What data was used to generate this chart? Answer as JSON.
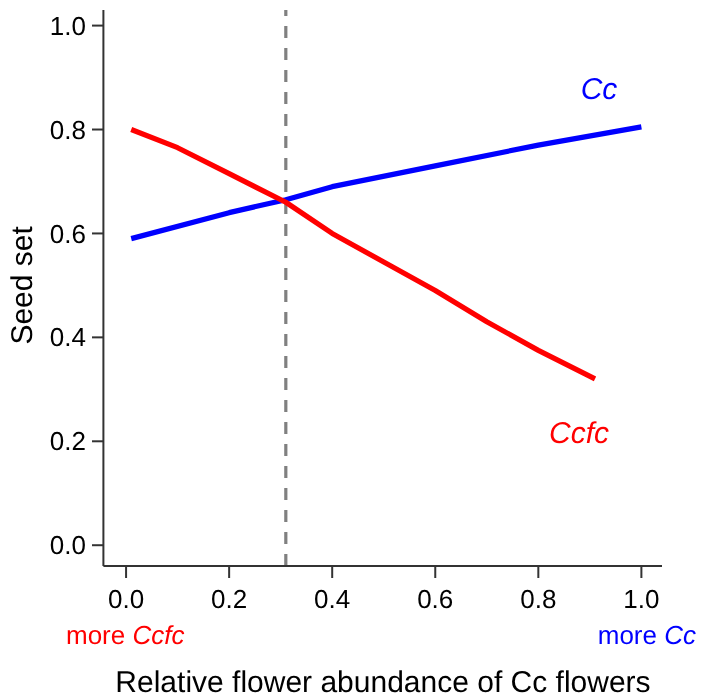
{
  "chart_data": {
    "type": "line",
    "xlabel": "Relative flower abundance of Cc flowers",
    "ylabel": "Seed set",
    "xlim": [
      -0.044,
      1.04
    ],
    "ylim": [
      -0.04,
      1.03
    ],
    "xticks": [
      {
        "value": 0,
        "label": "0.0"
      },
      0.2,
      0.4,
      0.6,
      0.8,
      {
        "value": 1,
        "label": "1.0"
      }
    ],
    "yticks": [
      {
        "value": 0,
        "label": "0.0"
      },
      0.2,
      0.4,
      0.6,
      0.8,
      {
        "value": 1,
        "label": "1.0"
      }
    ],
    "series": [
      {
        "name": "Cc",
        "color": "#0000ff",
        "x": [
          0.01,
          0.2,
          0.31,
          0.4,
          0.6,
          0.8,
          1.0
        ],
        "values": [
          0.59,
          0.64,
          0.665,
          0.69,
          0.73,
          0.77,
          0.805
        ]
      },
      {
        "name": "Ccfc",
        "color": "#ff0000",
        "x": [
          0.01,
          0.1,
          0.2,
          0.31,
          0.4,
          0.5,
          0.6,
          0.7,
          0.8,
          0.91
        ],
        "values": [
          0.8,
          0.765,
          0.715,
          0.66,
          0.6,
          0.545,
          0.49,
          0.43,
          0.375,
          0.32
        ]
      }
    ],
    "ref_lines": [
      {
        "axis": "x",
        "value": 0.31,
        "color": "#808080",
        "line_style": "dashed"
      }
    ],
    "annotations": [
      "more Ccfc",
      "more Cc"
    ],
    "grid": false,
    "marker": "none",
    "line_style": "solid"
  }
}
